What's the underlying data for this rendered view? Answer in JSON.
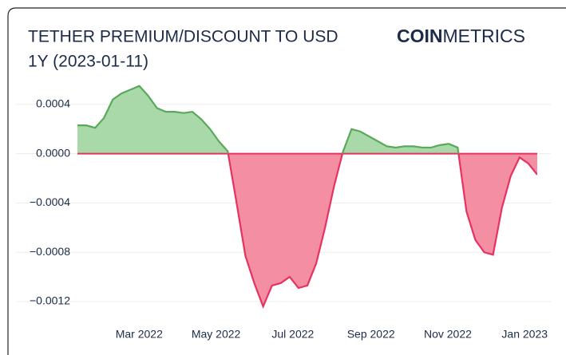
{
  "chart_data": {
    "type": "area",
    "title": "TETHER PREMIUM/DISCOUNT TO USD",
    "subtitle": "1Y (2023-01-11)",
    "brand": {
      "bold": "COIN",
      "light": "METRICS"
    },
    "xlim": [
      "2022-01-11",
      "2023-01-11"
    ],
    "xticks": [
      {
        "value": "2022-03",
        "label": "Mar 2022"
      },
      {
        "value": "2022-05",
        "label": "May 2022"
      },
      {
        "value": "2022-07",
        "label": "Jul 2022"
      },
      {
        "value": "2022-09",
        "label": "Sep 2022"
      },
      {
        "value": "2022-11",
        "label": "Nov 2022"
      },
      {
        "value": "2023-01",
        "label": "Jan 2023"
      }
    ],
    "ylim": [
      -0.00131,
      0.0006
    ],
    "yticks": [
      0.0004,
      {
        "value": 0,
        "label": "0.0000"
      },
      {
        "value": -0.0004,
        "label": "−0.0004"
      },
      {
        "value": -0.0008,
        "label": "−0.0008"
      },
      {
        "value": -0.0012,
        "label": "−0.0012"
      }
    ],
    "grid": true,
    "positive_color": "#5aa95a",
    "positive_fill": "#a9d9a9",
    "negative_color": "#e63261",
    "negative_fill": "#f48ea3",
    "values": [
      0.00023,
      0.00023,
      0.00021,
      0.00029,
      0.00044,
      0.00049,
      0.00052,
      0.00055,
      0.00047,
      0.00037,
      0.00034,
      0.00034,
      0.00033,
      0.00034,
      0.00028,
      0.0002,
      0.0001,
      2e-05,
      -0.0004,
      -0.00083,
      -0.00105,
      -0.00124,
      -0.00107,
      -0.00105,
      -0.001,
      -0.00109,
      -0.00107,
      -0.00089,
      -0.0006,
      -0.00027,
      1e-05,
      0.0002,
      0.00018,
      0.00014,
      0.0001,
      6e-05,
      5e-05,
      6e-05,
      6e-05,
      5e-05,
      5e-05,
      7e-05,
      8e-05,
      5e-05,
      -0.00047,
      -0.0007,
      -0.0008,
      -0.00082,
      -0.00044,
      -0.00018,
      -3e-05,
      -8e-05,
      -0.00017
    ]
  }
}
